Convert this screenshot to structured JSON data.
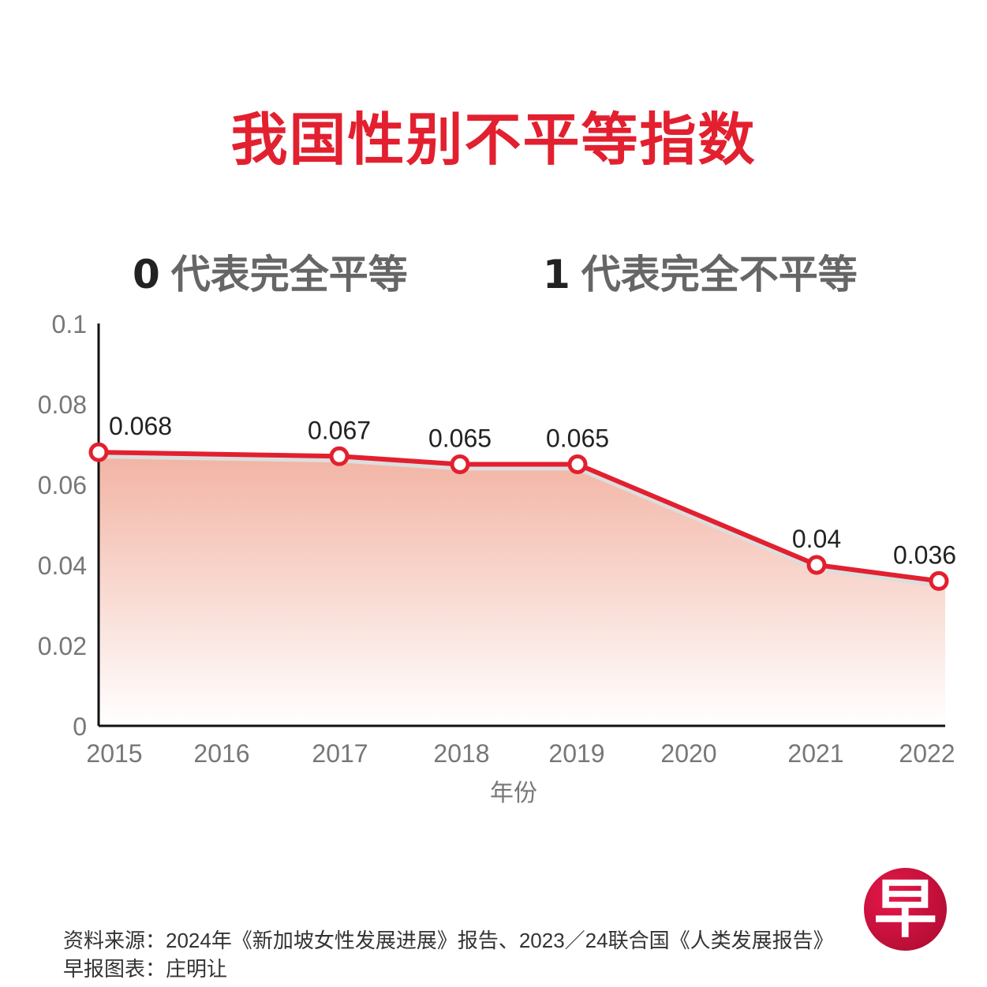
{
  "title": "我国性别不平等指数",
  "notes": [
    {
      "num": "0",
      "text": "代表完全平等"
    },
    {
      "num": "1",
      "text": "代表完全不平等"
    }
  ],
  "footer": {
    "source": "资料来源：2024年《新加坡女性发展进展》报告、2023／24联合国《人类发展报告》",
    "credit": "早报图表：庄明让"
  },
  "logo": "早",
  "colors": {
    "accent": "#e2202f",
    "fill_top": "#f2b3a3",
    "fill_bottom": "#ffffff"
  },
  "chart_data": {
    "type": "line",
    "title": "我国性别不平等指数",
    "xlabel": "年份",
    "ylabel": "",
    "categories": [
      "2015",
      "2016",
      "2017",
      "2018",
      "2019",
      "2020",
      "2021",
      "2022"
    ],
    "x": [
      "2015",
      "2017",
      "2018",
      "2019",
      "2021",
      "2022"
    ],
    "values": [
      0.068,
      0.067,
      0.065,
      0.065,
      0.04,
      0.036
    ],
    "labels": [
      "0.068",
      "0.067",
      "0.065",
      "0.065",
      "0.04",
      "0.036"
    ],
    "yticks": [
      "0",
      "0.02",
      "0.04",
      "0.06",
      "0.08",
      "0.1"
    ],
    "ylim": [
      0,
      0.1
    ],
    "grid": false
  }
}
